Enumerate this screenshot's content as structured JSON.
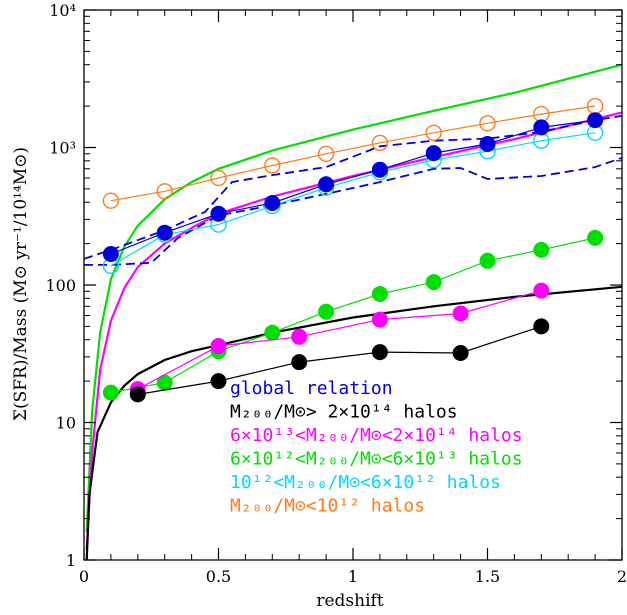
{
  "chart_data": {
    "type": "scatter",
    "title": "",
    "xlabel": "redshift",
    "ylabel": "Σ(SFR)/Mass (M⊙ yr⁻¹/10¹⁴M⊙)",
    "xlim": [
      0,
      2
    ],
    "ylim": [
      1,
      10000
    ],
    "y_scale": "log",
    "x_ticks": [
      {
        "v": 0,
        "label": "0"
      },
      {
        "v": 0.5,
        "label": "0.5"
      },
      {
        "v": 1,
        "label": "1"
      },
      {
        "v": 1.5,
        "label": "1.5"
      },
      {
        "v": 2,
        "label": "2"
      }
    ],
    "y_ticks": [
      {
        "v": 1,
        "label": "1"
      },
      {
        "v": 10,
        "label": "10"
      },
      {
        "v": 100,
        "label": "100"
      },
      {
        "v": 1000,
        "label": "10³"
      },
      {
        "v": 10000,
        "label": "10⁴"
      }
    ],
    "legend_placement": "lower-center",
    "series": [
      {
        "name": "global relation",
        "color": "#0000dd",
        "marker": "filled-circle",
        "x": [
          0.1,
          0.3,
          0.5,
          0.7,
          0.9,
          1.1,
          1.3,
          1.5,
          1.7,
          1.9
        ],
        "y": [
          168,
          240,
          330,
          395,
          540,
          690,
          910,
          1060,
          1400,
          1580
        ],
        "dashed_band_upper": {
          "x": [
            0.0,
            0.1,
            0.3,
            0.45,
            0.55,
            0.7,
            0.9,
            1.1,
            1.3,
            1.5,
            1.7,
            1.9,
            2.0
          ],
          "y": [
            155,
            180,
            250,
            340,
            560,
            630,
            720,
            1020,
            1120,
            1160,
            1300,
            1580,
            1700
          ]
        },
        "dashed_band_lower": {
          "x": [
            0.0,
            0.1,
            0.25,
            0.35,
            0.5,
            0.7,
            0.9,
            1.1,
            1.3,
            1.4,
            1.5,
            1.7,
            1.9,
            2.0
          ],
          "y": [
            140,
            140,
            145,
            220,
            320,
            380,
            460,
            560,
            700,
            710,
            590,
            620,
            720,
            840
          ]
        }
      },
      {
        "name": "M₂₀₀/M⊙> 2×10¹⁴ halos",
        "color": "#000000",
        "marker": "filled-circle",
        "x": [
          0.2,
          0.5,
          0.8,
          1.1,
          1.4,
          1.7
        ],
        "y": [
          16,
          20,
          27.5,
          32.5,
          32,
          50
        ]
      },
      {
        "name": "6×10¹³<M₂₀₀/M⊙<2×10¹⁴ halos",
        "color": "#ff00ff",
        "marker": "filled-circle",
        "x": [
          0.2,
          0.5,
          0.8,
          1.1,
          1.4,
          1.7
        ],
        "y": [
          17.5,
          36,
          42,
          56,
          62,
          91
        ]
      },
      {
        "name": "6×10¹²<M₂₀₀/M⊙<6×10¹³ halos",
        "color": "#00e000",
        "marker": "filled-circle",
        "x": [
          0.1,
          0.3,
          0.5,
          0.7,
          0.9,
          1.1,
          1.3,
          1.5,
          1.7,
          1.9
        ],
        "y": [
          16.5,
          19.5,
          33,
          45,
          64,
          86,
          105,
          150,
          180,
          220
        ]
      },
      {
        "name": "10¹²<M₂₀₀/M⊙<6×10¹² halos",
        "color": "#00d8ff",
        "marker": "open-circle",
        "x": [
          0.1,
          0.3,
          0.5,
          0.7,
          0.9,
          1.1,
          1.3,
          1.5,
          1.7,
          1.9
        ],
        "y": [
          138,
          232,
          275,
          375,
          510,
          660,
          810,
          940,
          1120,
          1280
        ]
      },
      {
        "name": "M₂₀₀/M⊙<10¹² halos",
        "color": "#ff7a1a",
        "marker": "open-circle",
        "x": [
          0.1,
          0.3,
          0.5,
          0.7,
          0.9,
          1.1,
          1.3,
          1.5,
          1.7,
          1.9
        ],
        "y": [
          410,
          480,
          600,
          740,
          900,
          1080,
          1280,
          1500,
          1750,
          2000
        ]
      }
    ],
    "fit_curves": [
      {
        "color": "#00e000",
        "x": [
          0.01,
          0.03,
          0.06,
          0.1,
          0.15,
          0.2,
          0.3,
          0.4,
          0.5,
          0.7,
          1.0,
          1.3,
          1.6,
          2.0
        ],
        "y": [
          1.6,
          12,
          45,
          110,
          190,
          270,
          420,
          560,
          700,
          950,
          1350,
          1850,
          2500,
          4000
        ]
      },
      {
        "color": "#ff00ff",
        "x": [
          0.01,
          0.03,
          0.06,
          0.1,
          0.15,
          0.2,
          0.3,
          0.4,
          0.5,
          0.7,
          1.0,
          1.3,
          1.6,
          2.0
        ],
        "y": [
          1.2,
          6,
          24,
          55,
          95,
          135,
          200,
          260,
          330,
          440,
          620,
          850,
          1150,
          1800
        ]
      },
      {
        "color": "#000000",
        "x": [
          0.01,
          0.02,
          0.05,
          0.1,
          0.15,
          0.2,
          0.3,
          0.4,
          0.5,
          0.7,
          1.0,
          1.3,
          1.6,
          2.0
        ],
        "y": [
          1.0,
          3.0,
          8.5,
          14,
          18.5,
          22.5,
          28.5,
          33,
          36.5,
          45,
          58,
          70,
          82,
          97
        ]
      }
    ]
  }
}
